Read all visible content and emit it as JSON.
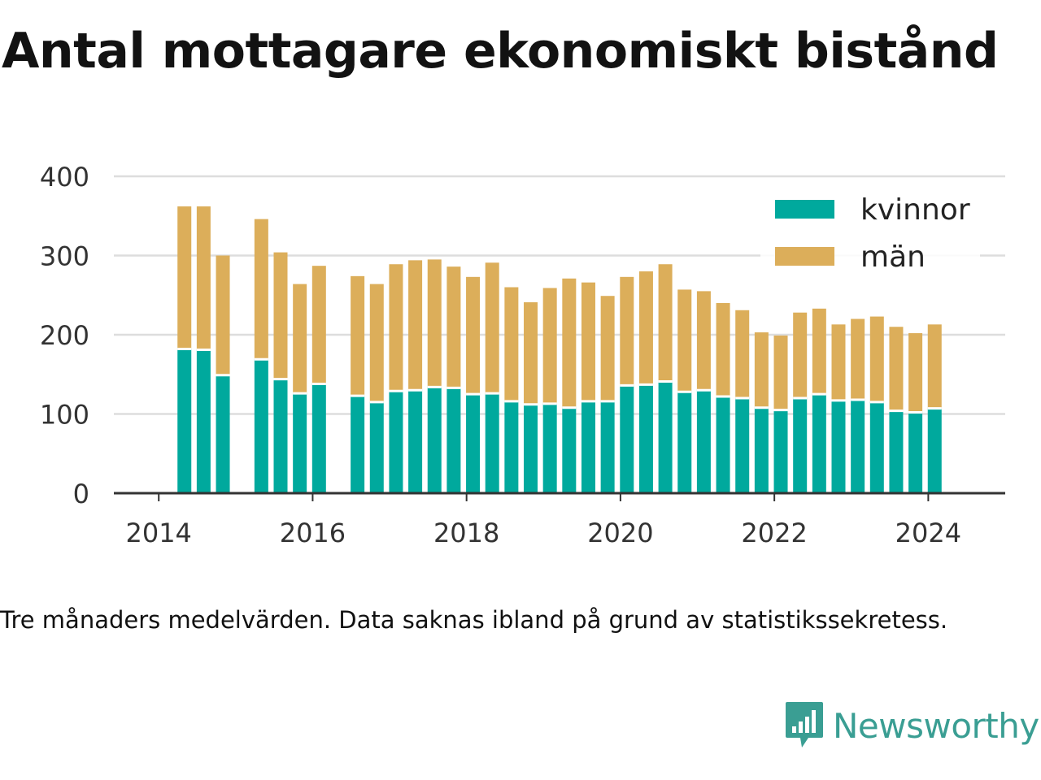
{
  "title": "Antal mottagare ekonomiskt bistånd",
  "note": "Tre månaders medelvärden. Data saknas ibland på grund av statistikssekretess.",
  "brand": {
    "name": "Newsworthy",
    "color": "#3a9e93"
  },
  "colors": {
    "kvinnor": "#00a99d",
    "man": "#dcae5a",
    "grid": "#dddddd",
    "axis": "#333333"
  },
  "chart_data": {
    "type": "bar",
    "stacked": true,
    "title": "Antal mottagare ekonomiskt bistånd",
    "xlabel": "",
    "ylabel": "",
    "ylim": [
      0,
      400
    ],
    "yticks": [
      0,
      100,
      200,
      300,
      400
    ],
    "xlim": [
      "2013-06",
      "2025-01"
    ],
    "xticks": [
      "2014",
      "2016",
      "2018",
      "2020",
      "2022",
      "2024"
    ],
    "grid": true,
    "legend_position": "top-right",
    "x": [
      "2014-05",
      "2014-08",
      "2014-11",
      "2015-05",
      "2015-08",
      "2015-11",
      "2016-02",
      "2016-08",
      "2016-11",
      "2017-02",
      "2017-05",
      "2017-08",
      "2017-11",
      "2018-02",
      "2018-05",
      "2018-08",
      "2018-11",
      "2019-02",
      "2019-05",
      "2019-08",
      "2019-11",
      "2020-02",
      "2020-05",
      "2020-08",
      "2020-11",
      "2021-02",
      "2021-05",
      "2021-08",
      "2021-11",
      "2022-02",
      "2022-05",
      "2022-08",
      "2022-11",
      "2023-02",
      "2023-05",
      "2023-08",
      "2023-11",
      "2024-02"
    ],
    "series": [
      {
        "name": "kvinnor",
        "color": "#00a99d",
        "values": [
          182,
          181,
          149,
          169,
          144,
          126,
          138,
          123,
          115,
          129,
          130,
          134,
          133,
          125,
          126,
          116,
          112,
          113,
          108,
          116,
          116,
          136,
          137,
          141,
          128,
          130,
          122,
          120,
          108,
          105,
          120,
          125,
          117,
          118,
          115,
          104,
          102,
          107
        ]
      },
      {
        "name": "män",
        "color": "#dcae5a",
        "values": [
          180,
          181,
          151,
          177,
          160,
          138,
          149,
          151,
          149,
          160,
          164,
          161,
          153,
          148,
          165,
          144,
          129,
          146,
          163,
          150,
          133,
          137,
          143,
          148,
          129,
          125,
          118,
          111,
          95,
          94,
          108,
          108,
          96,
          102,
          108,
          106,
          100,
          106
        ]
      }
    ]
  }
}
